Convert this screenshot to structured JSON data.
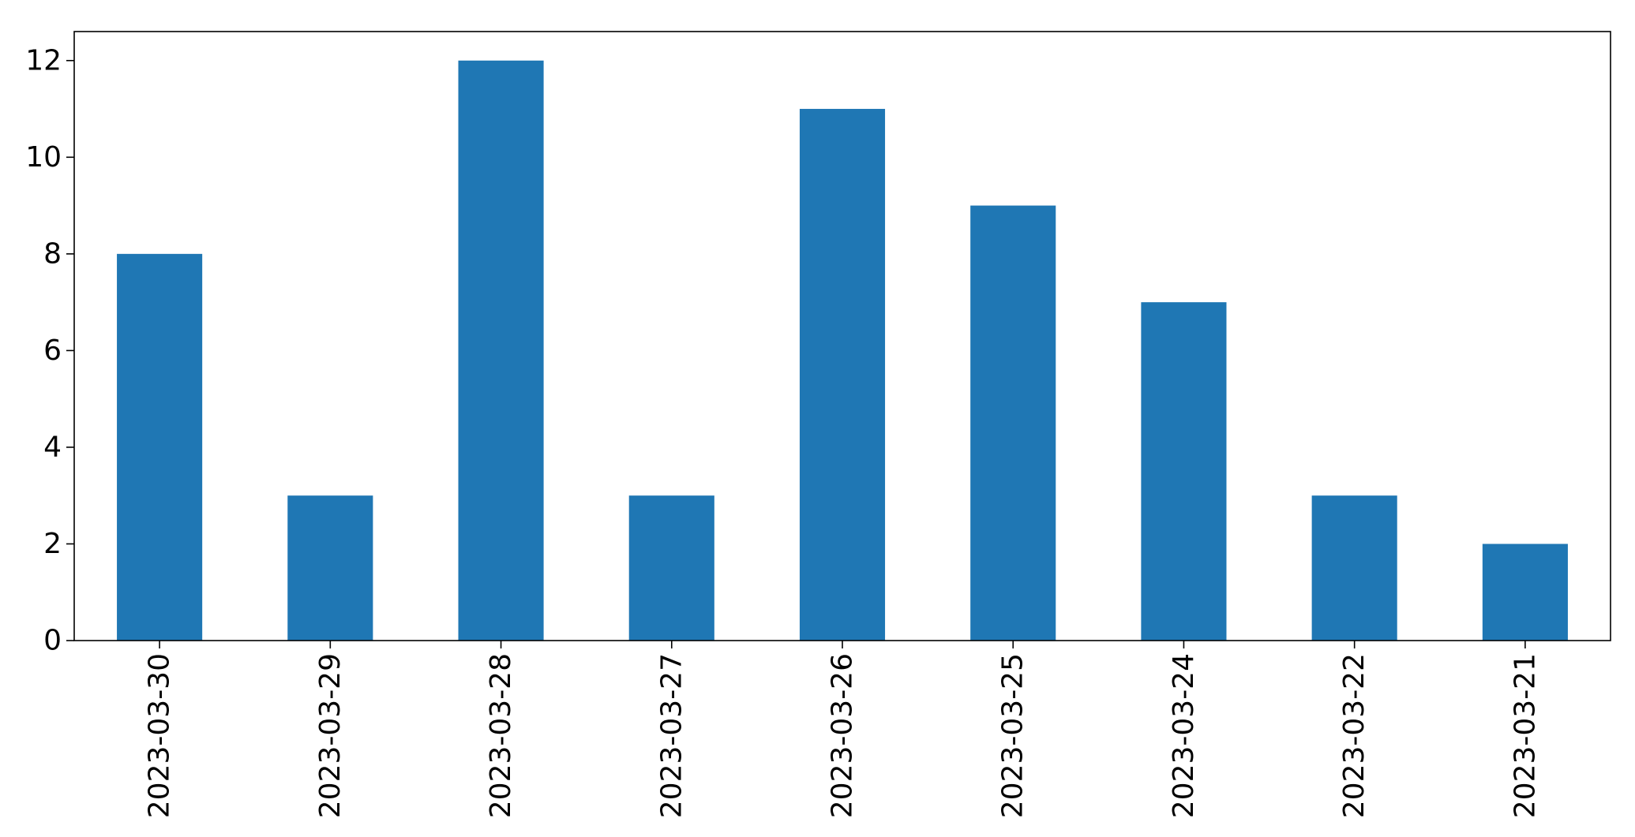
{
  "chart_data": {
    "type": "bar",
    "title": "",
    "xlabel": "",
    "ylabel": "",
    "categories": [
      "2023-03-30",
      "2023-03-29",
      "2023-03-28",
      "2023-03-27",
      "2023-03-26",
      "2023-03-25",
      "2023-03-24",
      "2023-03-22",
      "2023-03-21"
    ],
    "values": [
      8,
      3,
      12,
      3,
      11,
      9,
      7,
      3,
      2
    ],
    "ylim": [
      0,
      12.6
    ],
    "yticks": [
      0,
      2,
      4,
      6,
      8,
      10,
      12
    ],
    "bar_color": "#1f77b4",
    "grid": false,
    "legend": "none"
  }
}
